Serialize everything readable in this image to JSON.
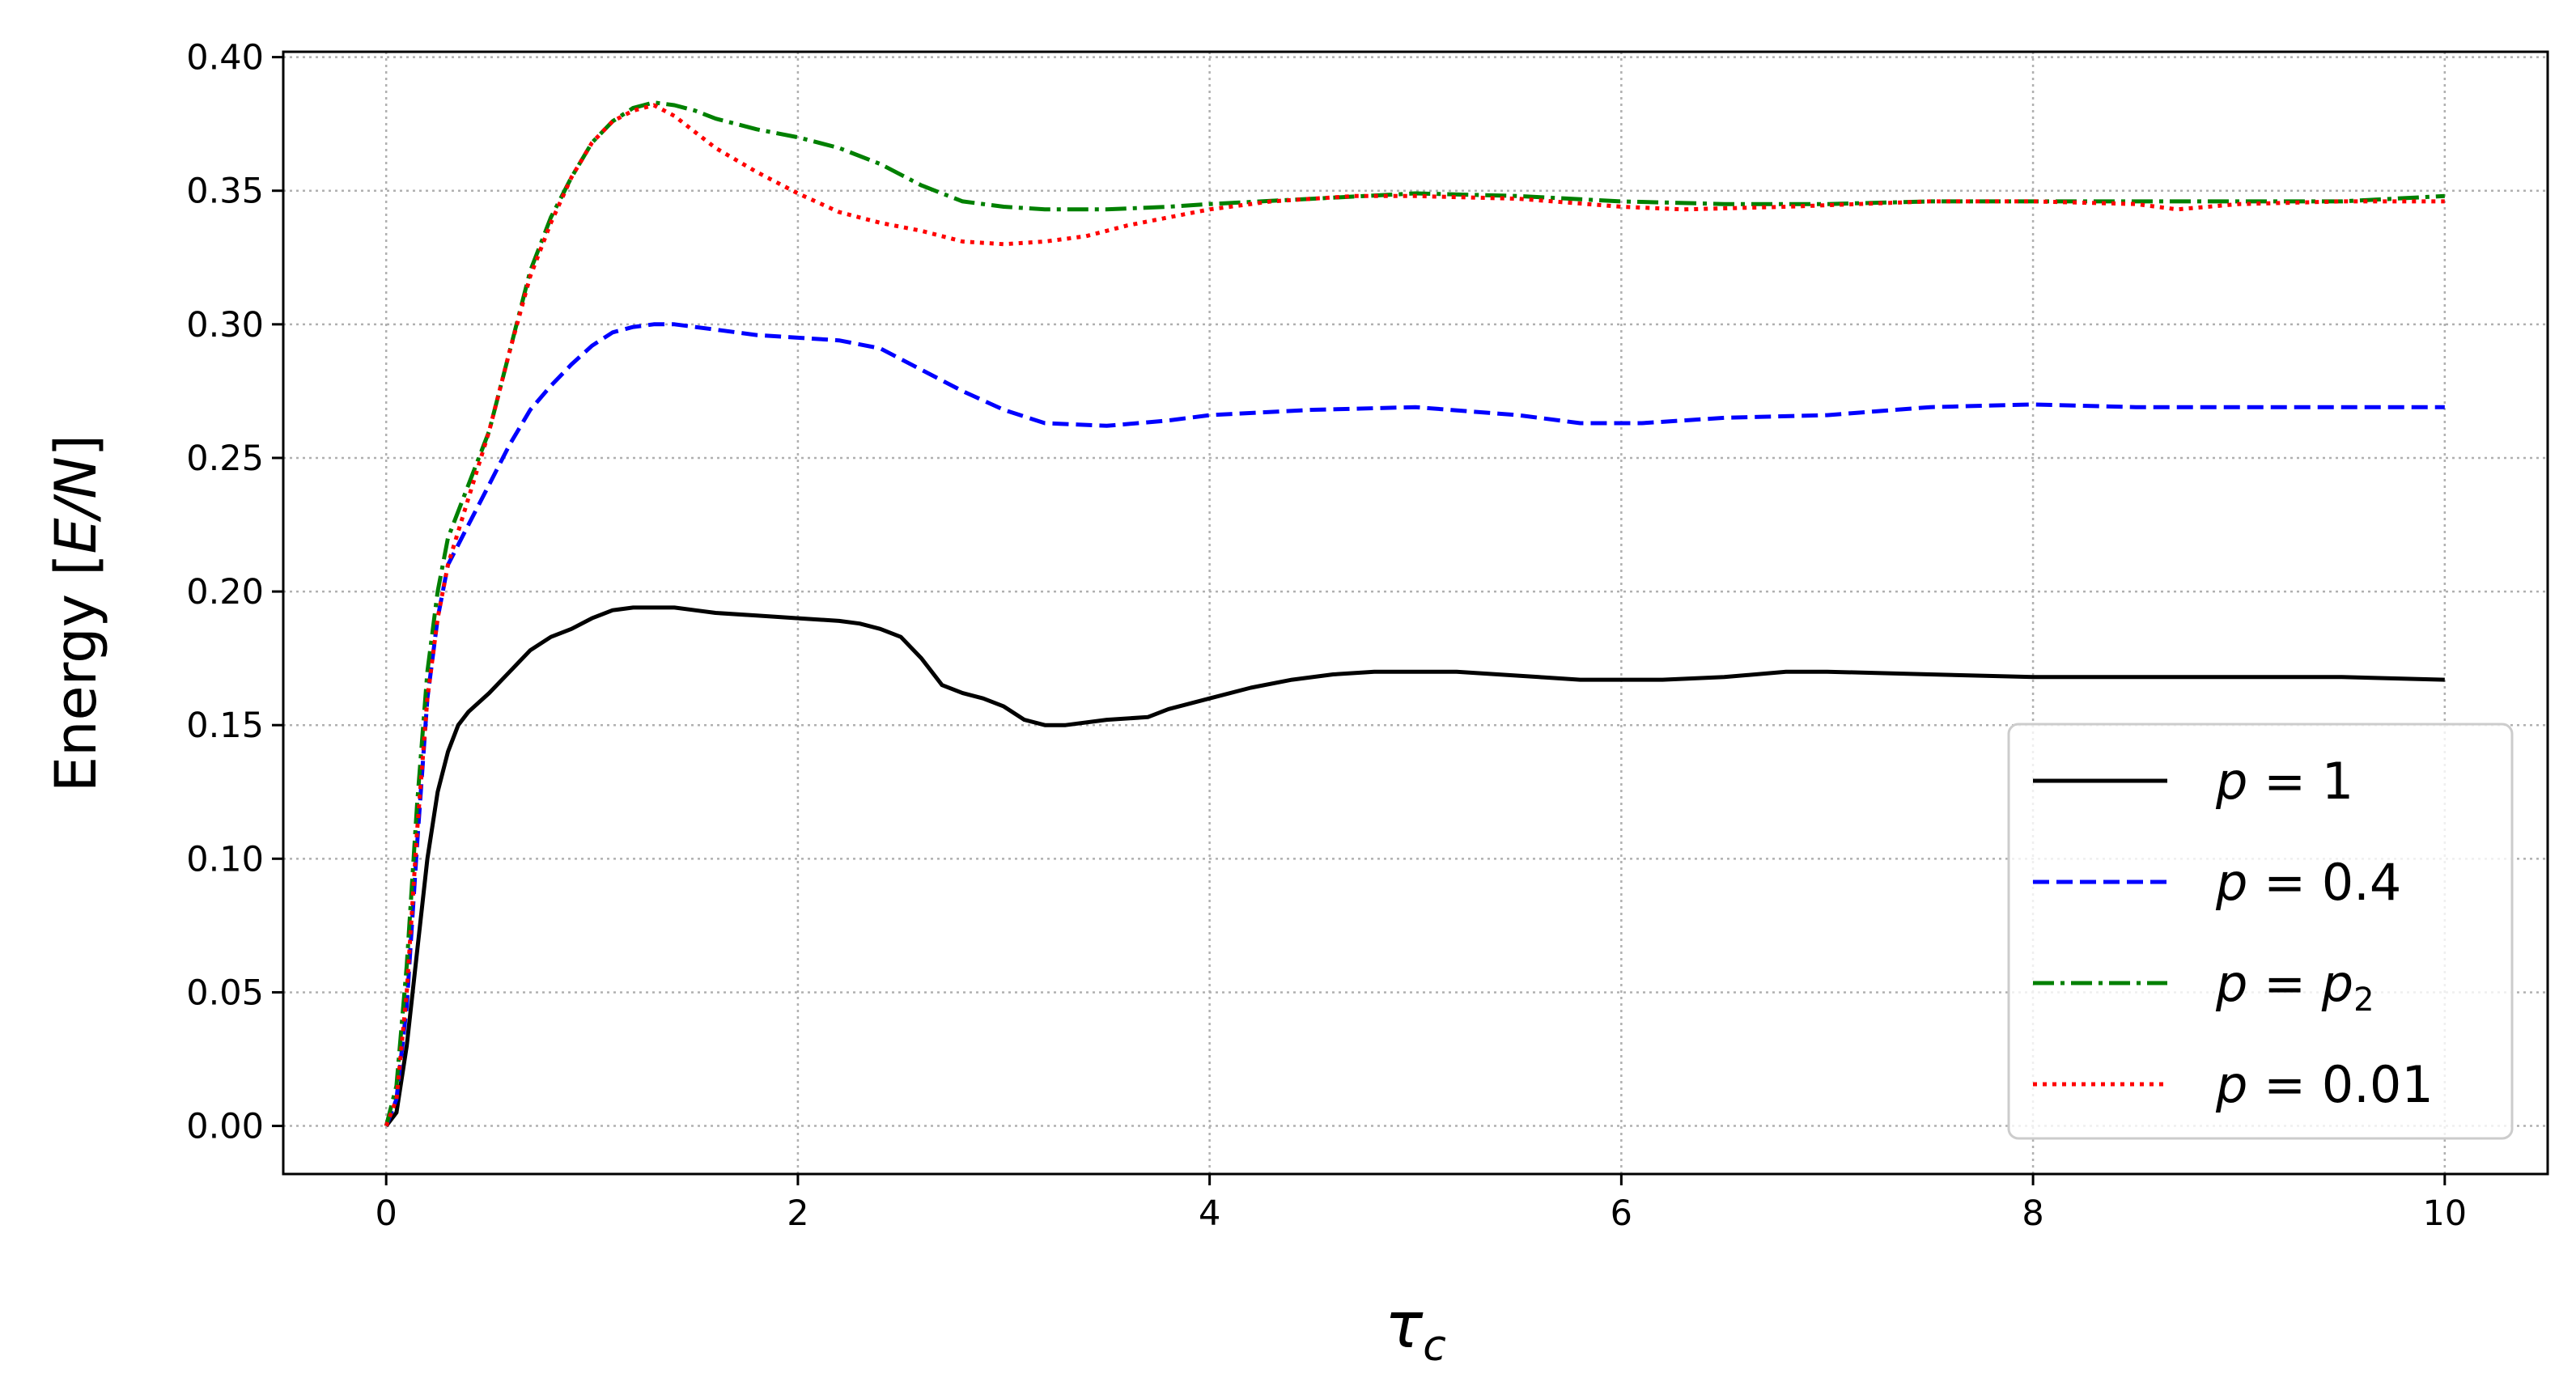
{
  "chart_data": {
    "type": "line",
    "xlabel": {
      "symbol": "τ",
      "sub": "c"
    },
    "ylabel": {
      "prefix": "Energy [",
      "math": "E/N",
      "suffix": "]"
    },
    "xlim": [
      -0.5,
      10.5
    ],
    "ylim": [
      -0.018,
      0.402
    ],
    "xticks": [
      "0",
      "2",
      "4",
      "6",
      "8",
      "10"
    ],
    "xtick_values": [
      0,
      2,
      4,
      6,
      8,
      10
    ],
    "yticks": [
      "0.00",
      "0.05",
      "0.10",
      "0.15",
      "0.20",
      "0.25",
      "0.30",
      "0.35",
      "0.40"
    ],
    "ytick_values": [
      0.0,
      0.05,
      0.1,
      0.15,
      0.2,
      0.25,
      0.3,
      0.35,
      0.4
    ],
    "grid": true,
    "legend_position": "lower-right",
    "series": [
      {
        "name": "p = 1",
        "legend": {
          "lhs": "p",
          "rhs": "1",
          "rhs_italic": false,
          "rhs_sub": ""
        },
        "color": "#000000",
        "dash": "",
        "points": [
          [
            0,
            0
          ],
          [
            0.05,
            0.005
          ],
          [
            0.1,
            0.03
          ],
          [
            0.15,
            0.065
          ],
          [
            0.2,
            0.1
          ],
          [
            0.25,
            0.125
          ],
          [
            0.3,
            0.14
          ],
          [
            0.35,
            0.15
          ],
          [
            0.4,
            0.155
          ],
          [
            0.5,
            0.162
          ],
          [
            0.6,
            0.17
          ],
          [
            0.7,
            0.178
          ],
          [
            0.8,
            0.183
          ],
          [
            0.9,
            0.186
          ],
          [
            1.0,
            0.19
          ],
          [
            1.1,
            0.193
          ],
          [
            1.2,
            0.194
          ],
          [
            1.3,
            0.194
          ],
          [
            1.4,
            0.194
          ],
          [
            1.5,
            0.193
          ],
          [
            1.6,
            0.192
          ],
          [
            1.8,
            0.191
          ],
          [
            2.0,
            0.19
          ],
          [
            2.2,
            0.189
          ],
          [
            2.3,
            0.188
          ],
          [
            2.4,
            0.186
          ],
          [
            2.5,
            0.183
          ],
          [
            2.6,
            0.175
          ],
          [
            2.7,
            0.165
          ],
          [
            2.8,
            0.162
          ],
          [
            2.9,
            0.16
          ],
          [
            3.0,
            0.157
          ],
          [
            3.1,
            0.152
          ],
          [
            3.2,
            0.15
          ],
          [
            3.3,
            0.15
          ],
          [
            3.5,
            0.152
          ],
          [
            3.7,
            0.153
          ],
          [
            3.8,
            0.156
          ],
          [
            4.0,
            0.16
          ],
          [
            4.2,
            0.164
          ],
          [
            4.4,
            0.167
          ],
          [
            4.6,
            0.169
          ],
          [
            4.8,
            0.17
          ],
          [
            5.0,
            0.17
          ],
          [
            5.2,
            0.17
          ],
          [
            5.4,
            0.169
          ],
          [
            5.6,
            0.168
          ],
          [
            5.8,
            0.167
          ],
          [
            6.0,
            0.167
          ],
          [
            6.2,
            0.167
          ],
          [
            6.5,
            0.168
          ],
          [
            6.8,
            0.17
          ],
          [
            7.0,
            0.17
          ],
          [
            7.5,
            0.169
          ],
          [
            8.0,
            0.168
          ],
          [
            8.5,
            0.168
          ],
          [
            9.0,
            0.168
          ],
          [
            9.5,
            0.168
          ],
          [
            10.0,
            0.167
          ]
        ]
      },
      {
        "name": "p = 0.4",
        "legend": {
          "lhs": "p",
          "rhs": "0.4",
          "rhs_italic": false,
          "rhs_sub": ""
        },
        "color": "#0000ff",
        "dash": "20 9",
        "points": [
          [
            0,
            0
          ],
          [
            0.05,
            0.01
          ],
          [
            0.1,
            0.045
          ],
          [
            0.15,
            0.105
          ],
          [
            0.2,
            0.16
          ],
          [
            0.25,
            0.19
          ],
          [
            0.3,
            0.21
          ],
          [
            0.4,
            0.225
          ],
          [
            0.5,
            0.24
          ],
          [
            0.6,
            0.255
          ],
          [
            0.7,
            0.268
          ],
          [
            0.8,
            0.277
          ],
          [
            0.9,
            0.285
          ],
          [
            1.0,
            0.292
          ],
          [
            1.1,
            0.297
          ],
          [
            1.2,
            0.299
          ],
          [
            1.3,
            0.3
          ],
          [
            1.4,
            0.3
          ],
          [
            1.6,
            0.298
          ],
          [
            1.8,
            0.296
          ],
          [
            2.0,
            0.295
          ],
          [
            2.2,
            0.294
          ],
          [
            2.4,
            0.291
          ],
          [
            2.6,
            0.283
          ],
          [
            2.8,
            0.275
          ],
          [
            3.0,
            0.268
          ],
          [
            3.2,
            0.263
          ],
          [
            3.5,
            0.262
          ],
          [
            3.8,
            0.264
          ],
          [
            4.0,
            0.266
          ],
          [
            4.5,
            0.268
          ],
          [
            5.0,
            0.269
          ],
          [
            5.5,
            0.266
          ],
          [
            5.8,
            0.263
          ],
          [
            6.1,
            0.263
          ],
          [
            6.5,
            0.265
          ],
          [
            7.0,
            0.266
          ],
          [
            7.5,
            0.269
          ],
          [
            8.0,
            0.27
          ],
          [
            8.5,
            0.269
          ],
          [
            9.0,
            0.269
          ],
          [
            9.5,
            0.269
          ],
          [
            10.0,
            0.269
          ]
        ]
      },
      {
        "name": "p = p₂",
        "legend": {
          "lhs": "p",
          "rhs": "p",
          "rhs_italic": true,
          "rhs_sub": "2"
        },
        "color": "#008000",
        "dash": "26 8 5 8",
        "points": [
          [
            0,
            0
          ],
          [
            0.05,
            0.015
          ],
          [
            0.1,
            0.06
          ],
          [
            0.15,
            0.12
          ],
          [
            0.2,
            0.17
          ],
          [
            0.25,
            0.2
          ],
          [
            0.3,
            0.22
          ],
          [
            0.4,
            0.24
          ],
          [
            0.5,
            0.26
          ],
          [
            0.6,
            0.29
          ],
          [
            0.7,
            0.32
          ],
          [
            0.8,
            0.34
          ],
          [
            0.9,
            0.355
          ],
          [
            1.0,
            0.368
          ],
          [
            1.1,
            0.376
          ],
          [
            1.2,
            0.381
          ],
          [
            1.3,
            0.383
          ],
          [
            1.4,
            0.382
          ],
          [
            1.5,
            0.38
          ],
          [
            1.6,
            0.377
          ],
          [
            1.8,
            0.373
          ],
          [
            2.0,
            0.37
          ],
          [
            2.2,
            0.366
          ],
          [
            2.4,
            0.36
          ],
          [
            2.6,
            0.352
          ],
          [
            2.8,
            0.346
          ],
          [
            3.0,
            0.344
          ],
          [
            3.2,
            0.343
          ],
          [
            3.5,
            0.343
          ],
          [
            3.8,
            0.344
          ],
          [
            4.0,
            0.345
          ],
          [
            4.5,
            0.347
          ],
          [
            5.0,
            0.349
          ],
          [
            5.5,
            0.348
          ],
          [
            6.0,
            0.346
          ],
          [
            6.5,
            0.345
          ],
          [
            7.0,
            0.345
          ],
          [
            7.5,
            0.346
          ],
          [
            8.0,
            0.346
          ],
          [
            8.5,
            0.346
          ],
          [
            9.0,
            0.346
          ],
          [
            9.5,
            0.346
          ],
          [
            10.0,
            0.348
          ]
        ]
      },
      {
        "name": "p = 0.01",
        "legend": {
          "lhs": "p",
          "rhs": "0.01",
          "rhs_italic": false,
          "rhs_sub": ""
        },
        "color": "#ff0000",
        "dash": "5 7",
        "points": [
          [
            0,
            0
          ],
          [
            0.05,
            0.01
          ],
          [
            0.1,
            0.05
          ],
          [
            0.15,
            0.11
          ],
          [
            0.2,
            0.16
          ],
          [
            0.25,
            0.19
          ],
          [
            0.3,
            0.21
          ],
          [
            0.4,
            0.235
          ],
          [
            0.5,
            0.26
          ],
          [
            0.6,
            0.29
          ],
          [
            0.7,
            0.318
          ],
          [
            0.8,
            0.338
          ],
          [
            0.9,
            0.355
          ],
          [
            1.0,
            0.368
          ],
          [
            1.1,
            0.376
          ],
          [
            1.2,
            0.38
          ],
          [
            1.3,
            0.382
          ],
          [
            1.4,
            0.378
          ],
          [
            1.5,
            0.372
          ],
          [
            1.6,
            0.366
          ],
          [
            1.8,
            0.357
          ],
          [
            2.0,
            0.349
          ],
          [
            2.2,
            0.342
          ],
          [
            2.4,
            0.338
          ],
          [
            2.6,
            0.335
          ],
          [
            2.8,
            0.331
          ],
          [
            3.0,
            0.33
          ],
          [
            3.2,
            0.331
          ],
          [
            3.4,
            0.333
          ],
          [
            3.6,
            0.337
          ],
          [
            3.8,
            0.34
          ],
          [
            4.0,
            0.343
          ],
          [
            4.3,
            0.346
          ],
          [
            4.7,
            0.348
          ],
          [
            5.0,
            0.348
          ],
          [
            5.5,
            0.347
          ],
          [
            6.0,
            0.344
          ],
          [
            6.3,
            0.343
          ],
          [
            6.8,
            0.344
          ],
          [
            7.5,
            0.346
          ],
          [
            8.0,
            0.346
          ],
          [
            8.5,
            0.345
          ],
          [
            8.7,
            0.343
          ],
          [
            9.0,
            0.345
          ],
          [
            9.5,
            0.346
          ],
          [
            10.0,
            0.346
          ]
        ]
      }
    ]
  }
}
